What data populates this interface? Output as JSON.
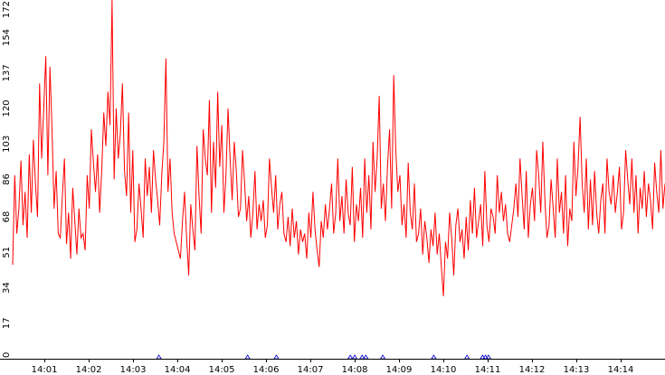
{
  "chart_data": {
    "type": "line",
    "title": "",
    "xlabel": "",
    "ylabel": "",
    "ylim": [
      0,
      172
    ],
    "y_ticks": [
      "0",
      "17",
      "34",
      "51",
      "68",
      "86",
      "103",
      "120",
      "137",
      "154",
      "172"
    ],
    "x_ticks": [
      "14:01",
      "14:02",
      "14:03",
      "14:04",
      "14:05",
      "14:06",
      "14:07",
      "14:08",
      "14:09",
      "14:10",
      "14:11",
      "14:12",
      "14:13",
      "14:14"
    ],
    "x_start": "14:00:17",
    "x_end": "14:15:00",
    "grid": false,
    "legend": "none",
    "colors": {
      "line": "#ff0000",
      "markers": "#0000cc",
      "axis": "#000000"
    },
    "series": [
      {
        "values": [
          45,
          88,
          60,
          72,
          95,
          64,
          80,
          58,
          98,
          70,
          105,
          84,
          68,
          132,
          96,
          120,
          145,
          88,
          140,
          110,
          72,
          90,
          60,
          58,
          78,
          96,
          55,
          70,
          48,
          82,
          66,
          50,
          72,
          58,
          60,
          52,
          88,
          72,
          110,
          94,
          80,
          98,
          70,
          90,
          118,
          102,
          128,
          112,
          172,
          86,
          120,
          96,
          108,
          132,
          90,
          78,
          118,
          70,
          100,
          56,
          62,
          84,
          72,
          58,
          96,
          78,
          92,
          70,
          100,
          86,
          76,
          64,
          88,
          104,
          144,
          80,
          96,
          70,
          60,
          56,
          52,
          48,
          66,
          80,
          58,
          40,
          74,
          62,
          52,
          102,
          78,
          60,
          110,
          96,
          88,
          124,
          70,
          104,
          82,
          128,
          92,
          112,
          70,
          88,
          120,
          96,
          76,
          104,
          90,
          68,
          72,
          100,
          84,
          66,
          78,
          58,
          70,
          90,
          62,
          74,
          66,
          76,
          58,
          64,
          96,
          82,
          70,
          88,
          62,
          74,
          80,
          60,
          56,
          68,
          54,
          72,
          58,
          66,
          50,
          62,
          56,
          60,
          48,
          70,
          58,
          80,
          62,
          52,
          44,
          66,
          58,
          74,
          62,
          72,
          84,
          60,
          70,
          96,
          66,
          78,
          60,
          86,
          70,
          64,
          92,
          56,
          74,
          66,
          82,
          58,
          96,
          70,
          88,
          62,
          104,
          80,
          96,
          126,
          72,
          84,
          66,
          92,
          110,
          72,
          136,
          100,
          80,
          88,
          64,
          74,
          58,
          94,
          70,
          62,
          84,
          56,
          60,
          72,
          50,
          66,
          58,
          46,
          62,
          54,
          70,
          50,
          60,
          44,
          30,
          56,
          48,
          70,
          58,
          40,
          64,
          72,
          56,
          62,
          48,
          68,
          52,
          76,
          60,
          82,
          58,
          66,
          74,
          54,
          90,
          64,
          56,
          72,
          68,
          60,
          88,
          70,
          80,
          66,
          74,
          60,
          56,
          64,
          72,
          84,
          68,
          96,
          78,
          62,
          90,
          58,
          74,
          82,
          66,
          100,
          88,
          70,
          104,
          76,
          58,
          64,
          86,
          72,
          58,
          96,
          70,
          80,
          60,
          88,
          54,
          72,
          66,
          104,
          78,
          92,
          116,
          84,
          70,
          96,
          62,
          86,
          64,
          90,
          70,
          60,
          76,
          84,
          60,
          96,
          80,
          74,
          88,
          70,
          80,
          92,
          62,
          70,
          100,
          86,
          74,
          96,
          70,
          88,
          60,
          82,
          72,
          90,
          68,
          84,
          76,
          62,
          94,
          80,
          70,
          100,
          72,
          84
        ]
      }
    ],
    "markers_x": [
      "14:03:35",
      "14:05:35",
      "14:06:14",
      "14:07:54",
      "14:08:00",
      "14:08:10",
      "14:08:15",
      "14:08:38",
      "14:09:47",
      "14:10:32",
      "14:10:53",
      "14:10:57",
      "14:11:01"
    ]
  }
}
